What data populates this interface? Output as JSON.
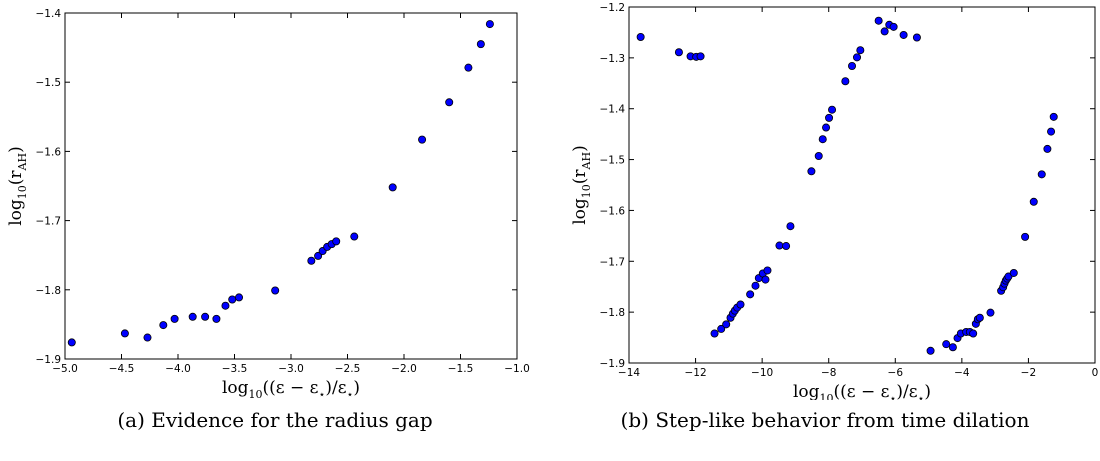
{
  "chart_data": [
    {
      "type": "scatter",
      "caption": "(a) Evidence for the radius gap",
      "xlabel_parts": [
        "log",
        "10",
        "((ε − ε",
        "⋆",
        ")/ε",
        "⋆",
        ")"
      ],
      "ylabel_parts": [
        "log",
        "10",
        "(r",
        "AH",
        ")"
      ],
      "xlim": [
        -5.0,
        -1.0
      ],
      "ylim": [
        -1.9,
        -1.4
      ],
      "xticks": [
        -5.0,
        -4.5,
        -4.0,
        -3.5,
        -3.0,
        -2.5,
        -2.0,
        -1.5,
        -1.0
      ],
      "xtick_labels": [
        "−5.0",
        "−4.5",
        "−4.0",
        "−3.5",
        "−3.0",
        "−2.5",
        "−2.0",
        "−1.5",
        "−1.0"
      ],
      "yticks": [
        -1.9,
        -1.8,
        -1.7,
        -1.6,
        -1.5,
        -1.4
      ],
      "ytick_labels": [
        "−1.9",
        "−1.8",
        "−1.7",
        "−1.6",
        "−1.5",
        "−1.4"
      ],
      "marker_color": "#0000ff",
      "grid": false,
      "points": [
        [
          -4.94,
          -1.876
        ],
        [
          -4.47,
          -1.863
        ],
        [
          -4.27,
          -1.869
        ],
        [
          -4.13,
          -1.851
        ],
        [
          -4.03,
          -1.842
        ],
        [
          -3.87,
          -1.839
        ],
        [
          -3.76,
          -1.839
        ],
        [
          -3.66,
          -1.842
        ],
        [
          -3.58,
          -1.823
        ],
        [
          -3.52,
          -1.814
        ],
        [
          -3.46,
          -1.811
        ],
        [
          -3.14,
          -1.801
        ],
        [
          -2.82,
          -1.758
        ],
        [
          -2.76,
          -1.751
        ],
        [
          -2.72,
          -1.744
        ],
        [
          -2.68,
          -1.738
        ],
        [
          -2.64,
          -1.734
        ],
        [
          -2.6,
          -1.73
        ],
        [
          -2.44,
          -1.723
        ],
        [
          -2.1,
          -1.652
        ],
        [
          -1.84,
          -1.583
        ],
        [
          -1.6,
          -1.529
        ],
        [
          -1.43,
          -1.479
        ],
        [
          -1.32,
          -1.445
        ],
        [
          -1.24,
          -1.416
        ]
      ]
    },
    {
      "type": "scatter",
      "caption": "(b) Step-like behavior from time dilation",
      "xlabel_parts": [
        "log",
        "10",
        "((ε − ε",
        "⋆",
        ")/ε",
        "⋆",
        ")"
      ],
      "ylabel_parts": [
        "log",
        "10",
        "(r",
        "AH",
        ")"
      ],
      "xlim": [
        -14,
        0
      ],
      "ylim": [
        -1.9,
        -1.2
      ],
      "xticks": [
        -14,
        -12,
        -10,
        -8,
        -6,
        -4,
        -2,
        0
      ],
      "xtick_labels": [
        "−14",
        "−12",
        "−10",
        "−8",
        "−6",
        "−4",
        "−2",
        "0"
      ],
      "yticks": [
        -1.9,
        -1.8,
        -1.7,
        -1.6,
        -1.5,
        -1.4,
        -1.3,
        -1.2
      ],
      "ytick_labels": [
        "−1.9",
        "−1.8",
        "−1.7",
        "−1.6",
        "−1.5",
        "−1.4",
        "−1.3",
        "−1.2"
      ],
      "marker_color": "#0000ff",
      "grid": false,
      "points": [
        [
          -13.65,
          -1.259
        ],
        [
          -12.5,
          -1.289
        ],
        [
          -12.15,
          -1.297
        ],
        [
          -11.98,
          -1.298
        ],
        [
          -11.85,
          -1.297
        ],
        [
          -11.43,
          -1.842
        ],
        [
          -11.23,
          -1.833
        ],
        [
          -11.08,
          -1.824
        ],
        [
          -10.95,
          -1.811
        ],
        [
          -10.88,
          -1.803
        ],
        [
          -10.82,
          -1.797
        ],
        [
          -10.75,
          -1.791
        ],
        [
          -10.65,
          -1.785
        ],
        [
          -10.36,
          -1.765
        ],
        [
          -10.2,
          -1.748
        ],
        [
          -10.1,
          -1.733
        ],
        [
          -9.98,
          -1.724
        ],
        [
          -9.84,
          -1.718
        ],
        [
          -9.9,
          -1.736
        ],
        [
          -9.48,
          -1.669
        ],
        [
          -9.28,
          -1.67
        ],
        [
          -9.15,
          -1.631
        ],
        [
          -8.52,
          -1.523
        ],
        [
          -8.3,
          -1.493
        ],
        [
          -8.18,
          -1.46
        ],
        [
          -8.08,
          -1.437
        ],
        [
          -7.99,
          -1.418
        ],
        [
          -7.9,
          -1.402
        ],
        [
          -7.5,
          -1.346
        ],
        [
          -7.3,
          -1.316
        ],
        [
          -7.15,
          -1.299
        ],
        [
          -7.05,
          -1.285
        ],
        [
          -6.5,
          -1.227
        ],
        [
          -6.32,
          -1.248
        ],
        [
          -6.18,
          -1.235
        ],
        [
          -6.05,
          -1.239
        ],
        [
          -5.75,
          -1.255
        ],
        [
          -5.35,
          -1.26
        ],
        [
          -4.94,
          -1.876
        ],
        [
          -4.47,
          -1.863
        ],
        [
          -4.27,
          -1.869
        ],
        [
          -4.13,
          -1.851
        ],
        [
          -4.03,
          -1.842
        ],
        [
          -3.87,
          -1.839
        ],
        [
          -3.76,
          -1.839
        ],
        [
          -3.66,
          -1.842
        ],
        [
          -3.58,
          -1.823
        ],
        [
          -3.52,
          -1.814
        ],
        [
          -3.46,
          -1.811
        ],
        [
          -3.14,
          -1.801
        ],
        [
          -2.82,
          -1.758
        ],
        [
          -2.76,
          -1.751
        ],
        [
          -2.72,
          -1.744
        ],
        [
          -2.68,
          -1.738
        ],
        [
          -2.64,
          -1.734
        ],
        [
          -2.6,
          -1.73
        ],
        [
          -2.44,
          -1.723
        ],
        [
          -2.1,
          -1.652
        ],
        [
          -1.84,
          -1.583
        ],
        [
          -1.6,
          -1.529
        ],
        [
          -1.43,
          -1.479
        ],
        [
          -1.32,
          -1.445
        ],
        [
          -1.24,
          -1.416
        ]
      ]
    }
  ]
}
